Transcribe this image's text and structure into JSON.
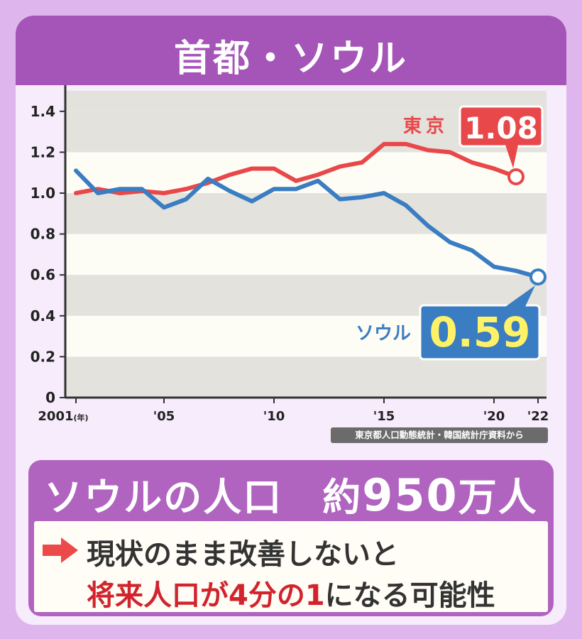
{
  "header": {
    "title": "首都・ソウル"
  },
  "chart_data": {
    "type": "line",
    "x": [
      2001,
      2002,
      2003,
      2004,
      2005,
      2006,
      2007,
      2008,
      2009,
      2010,
      2011,
      2012,
      2013,
      2014,
      2015,
      2016,
      2017,
      2018,
      2019,
      2020,
      2021,
      2022
    ],
    "xticks": [
      {
        "x": 2001,
        "label": "2001",
        "suffix": "(年)"
      },
      {
        "x": 2005,
        "label": "'05"
      },
      {
        "x": 2010,
        "label": "'10"
      },
      {
        "x": 2015,
        "label": "'15"
      },
      {
        "x": 2020,
        "label": "'20"
      },
      {
        "x": 2022,
        "label": "'22"
      }
    ],
    "yticks": [
      "0",
      "0.2",
      "0.4",
      "0.6",
      "0.8",
      "1.0",
      "1.2",
      "1.4"
    ],
    "ylim": [
      0,
      1.5
    ],
    "grid": "horizontal bands",
    "series": [
      {
        "name": "東京",
        "color": "#e8484a",
        "x": [
          2001,
          2002,
          2003,
          2004,
          2005,
          2006,
          2007,
          2008,
          2009,
          2010,
          2011,
          2012,
          2013,
          2014,
          2015,
          2016,
          2017,
          2018,
          2019,
          2020,
          2021
        ],
        "values": [
          1.0,
          1.02,
          1.0,
          1.01,
          1.0,
          1.02,
          1.05,
          1.09,
          1.12,
          1.12,
          1.06,
          1.09,
          1.13,
          1.15,
          1.24,
          1.24,
          1.21,
          1.2,
          1.15,
          1.12,
          1.08
        ],
        "end_value_label": "1.08"
      },
      {
        "name": "ソウル",
        "color": "#3a7dc2",
        "x": [
          2001,
          2002,
          2003,
          2004,
          2005,
          2006,
          2007,
          2008,
          2009,
          2010,
          2011,
          2012,
          2013,
          2014,
          2015,
          2016,
          2017,
          2018,
          2019,
          2020,
          2021,
          2022
        ],
        "values": [
          1.11,
          1.0,
          1.02,
          1.02,
          0.93,
          0.97,
          1.07,
          1.01,
          0.96,
          1.02,
          1.02,
          1.06,
          0.97,
          0.98,
          1.0,
          0.94,
          0.84,
          0.76,
          0.72,
          0.64,
          0.62,
          0.59
        ],
        "end_value_label": "0.59"
      }
    ]
  },
  "source": "東京都人口動態統計・韓国統計庁資料から",
  "population": {
    "label": "ソウルの人口",
    "prefix": "約",
    "number": "950",
    "unit": "万人"
  },
  "note": {
    "line1": "現状のまま改善しないと",
    "line2_red": "将来人口が4分の1",
    "line2_rest": "になる可能性"
  },
  "colors": {
    "header": "#a554b8",
    "panel": "#b064c0",
    "tokyo": "#e8484a",
    "seoul": "#3a7dc2",
    "seoul_value_text": "#fff266",
    "band": "#e3e2dc",
    "plot_bg": "#fdfdf6"
  }
}
